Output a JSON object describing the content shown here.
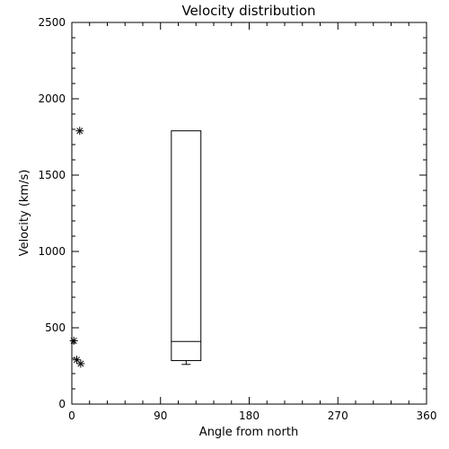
{
  "chart_data": {
    "type": "box-scatter",
    "title": "Velocity distribution",
    "xlabel": "Angle from north",
    "ylabel": "Velocity (km/s)",
    "xlim": [
      0,
      360
    ],
    "ylim": [
      0,
      2500
    ],
    "xticks": [
      0,
      90,
      180,
      270,
      360
    ],
    "yticks": [
      0,
      500,
      1000,
      1500,
      2000,
      2500
    ],
    "grid": false,
    "points": [
      {
        "x": 8,
        "y": 1790
      },
      {
        "x": 2,
        "y": 415
      },
      {
        "x": 5,
        "y": 290
      },
      {
        "x": 9,
        "y": 265
      }
    ],
    "box": {
      "x_left": 101,
      "x_right": 131,
      "min": 260,
      "q1": 285,
      "median": 410,
      "q3": 1790,
      "max": 1790
    },
    "point_symbol": "asterisk"
  }
}
